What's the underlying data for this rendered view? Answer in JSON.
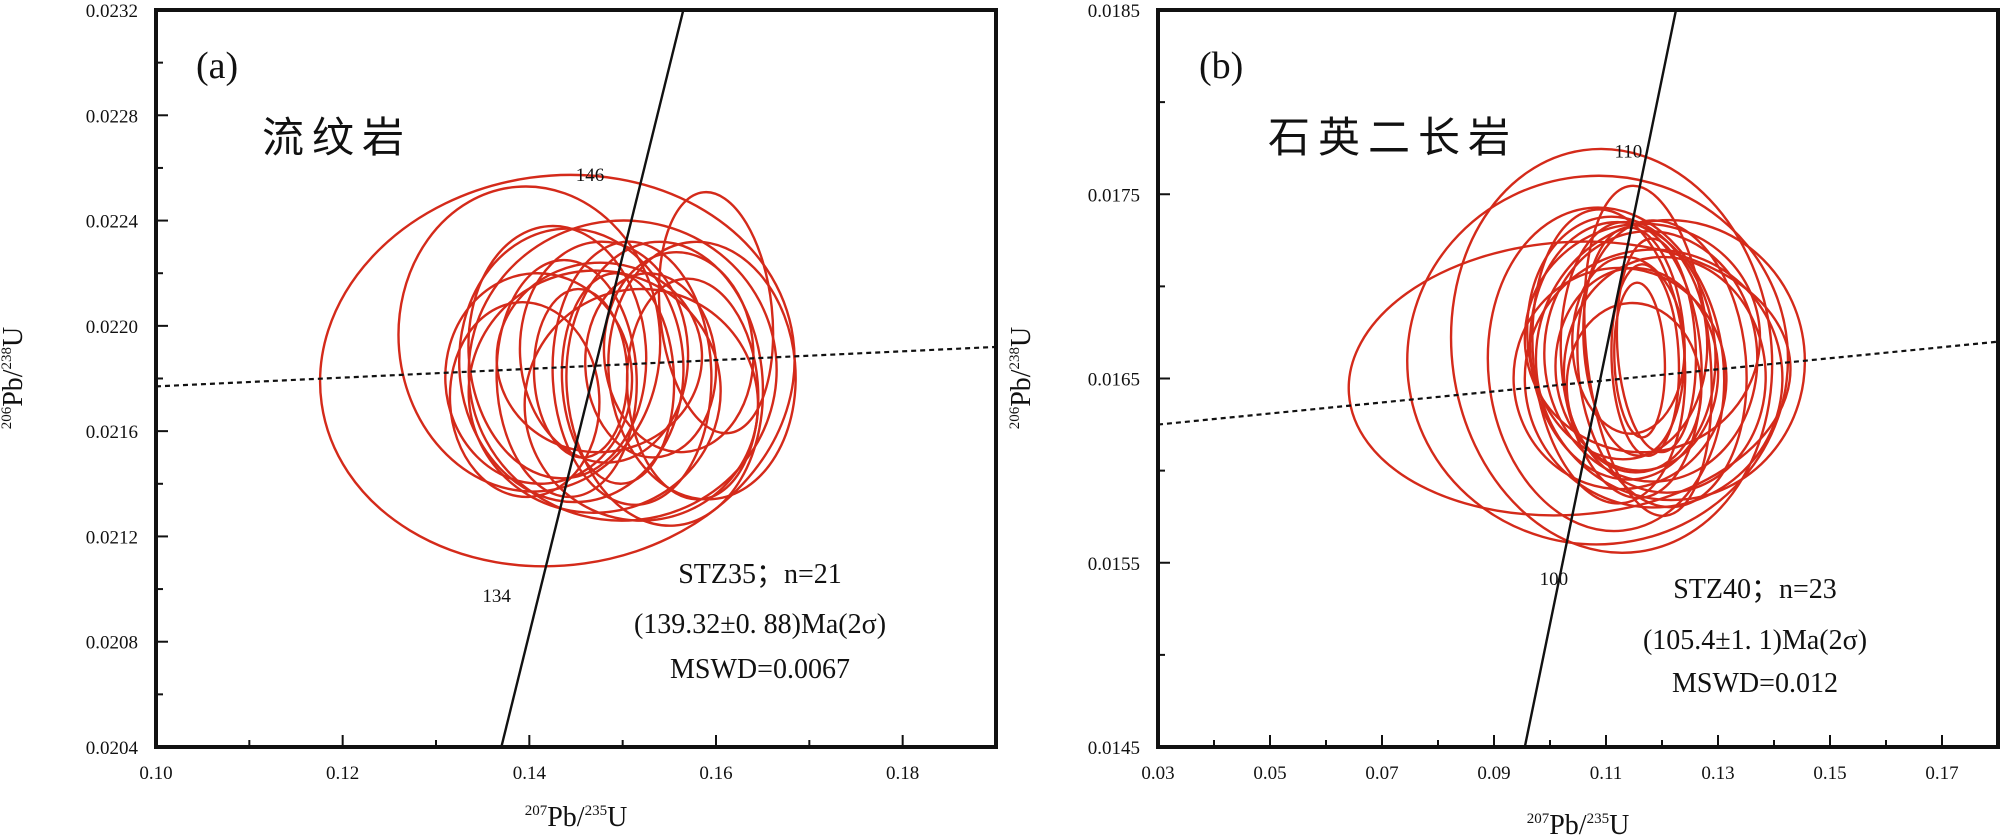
{
  "chart_data": [
    {
      "type": "scatter",
      "subtype": "concordia-diagram",
      "panel_label": "(a)",
      "rock_type": "流纹岩",
      "sample_line": "STZ35；n=21",
      "age_line": "(139.32±0. 88)Ma(2σ)",
      "mswd_line": "MSWD=0.0067",
      "xlabel": "207Pb/235U",
      "ylabel": "206Pb/238U",
      "xlabel_parts": {
        "sup1": "207",
        "b1": "Pb/",
        "sup2": "235",
        "b2": "U"
      },
      "ylabel_parts": {
        "sup1": "206",
        "b1": "Pb/",
        "sup2": "238",
        "b2": "U"
      },
      "xlim": [
        0.1,
        0.19
      ],
      "ylim": [
        0.0204,
        0.0232
      ],
      "x_ticks": [
        0.1,
        0.12,
        0.14,
        0.16,
        0.18
      ],
      "x_tick_labels": [
        "0.10",
        "0.12",
        "0.14",
        "0.16",
        "0.18"
      ],
      "y_ticks": [
        0.0204,
        0.0208,
        0.0212,
        0.0216,
        0.022,
        0.0224,
        0.0228,
        0.0232
      ],
      "y_tick_labels": [
        "0.0204",
        "0.0208",
        "0.0212",
        "0.0216",
        "0.0220",
        "0.0224",
        "0.0228",
        "0.0232"
      ],
      "concordia": {
        "x0": 0.137,
        "y0": 0.0204,
        "x1": 0.1565,
        "y1": 0.0232
      },
      "concordia_age_labels": [
        {
          "text": "146",
          "x": 0.1465,
          "y": 0.02255
        },
        {
          "text": "134",
          "x": 0.1365,
          "y": 0.02095
        }
      ],
      "discordia": {
        "x0": 0.1,
        "y0": 0.02177,
        "x1": 0.19,
        "y1": 0.02192
      },
      "error_ellipse_color": "#d42a1a",
      "error_ellipses": [
        {
          "cx": 0.143,
          "cy": 0.02183,
          "rx": 0.0255,
          "ry": 0.00074,
          "tilt_deg": 8
        },
        {
          "cx": 0.14,
          "cy": 0.02195,
          "rx": 0.014,
          "ry": 0.00058,
          "tilt_deg": 5
        },
        {
          "cx": 0.141,
          "cy": 0.0218,
          "rx": 0.01,
          "ry": 0.0004,
          "tilt_deg": 3
        },
        {
          "cx": 0.1445,
          "cy": 0.02185,
          "rx": 0.012,
          "ry": 0.00052,
          "tilt_deg": 4
        },
        {
          "cx": 0.144,
          "cy": 0.0218,
          "rx": 0.0075,
          "ry": 0.00045,
          "tilt_deg": 2
        },
        {
          "cx": 0.15,
          "cy": 0.02183,
          "rx": 0.0165,
          "ry": 0.00057,
          "tilt_deg": 6
        },
        {
          "cx": 0.148,
          "cy": 0.0219,
          "rx": 0.009,
          "ry": 0.00042,
          "tilt_deg": 3
        },
        {
          "cx": 0.151,
          "cy": 0.02182,
          "rx": 0.0085,
          "ry": 0.0005,
          "tilt_deg": 2
        },
        {
          "cx": 0.1545,
          "cy": 0.02178,
          "rx": 0.0105,
          "ry": 0.00054,
          "tilt_deg": 4
        },
        {
          "cx": 0.156,
          "cy": 0.0219,
          "rx": 0.008,
          "ry": 0.00038,
          "tilt_deg": 3
        },
        {
          "cx": 0.1585,
          "cy": 0.02183,
          "rx": 0.01,
          "ry": 0.00049,
          "tilt_deg": 5
        },
        {
          "cx": 0.16,
          "cy": 0.02205,
          "rx": 0.006,
          "ry": 0.00046,
          "tilt_deg": 6
        },
        {
          "cx": 0.147,
          "cy": 0.02175,
          "rx": 0.0135,
          "ry": 0.00046,
          "tilt_deg": 4
        },
        {
          "cx": 0.1495,
          "cy": 0.0218,
          "rx": 0.006,
          "ry": 0.0004,
          "tilt_deg": 2
        },
        {
          "cx": 0.153,
          "cy": 0.02185,
          "rx": 0.007,
          "ry": 0.00035,
          "tilt_deg": 3
        },
        {
          "cx": 0.1455,
          "cy": 0.02182,
          "rx": 0.005,
          "ry": 0.00032,
          "tilt_deg": 2
        },
        {
          "cx": 0.152,
          "cy": 0.0217,
          "rx": 0.0125,
          "ry": 0.00044,
          "tilt_deg": 5
        },
        {
          "cx": 0.143,
          "cy": 0.0219,
          "rx": 0.0095,
          "ry": 0.00048,
          "tilt_deg": 4
        },
        {
          "cx": 0.1475,
          "cy": 0.02188,
          "rx": 0.011,
          "ry": 0.00036,
          "tilt_deg": 3
        },
        {
          "cx": 0.1575,
          "cy": 0.02176,
          "rx": 0.007,
          "ry": 0.00042,
          "tilt_deg": 4
        },
        {
          "cx": 0.1395,
          "cy": 0.02172,
          "rx": 0.008,
          "ry": 0.00037,
          "tilt_deg": 3
        }
      ]
    },
    {
      "type": "scatter",
      "subtype": "concordia-diagram",
      "panel_label": "(b)",
      "rock_type": "石英二长岩",
      "sample_line": "STZ40；n=23",
      "age_line": "(105.4±1. 1)Ma(2σ)",
      "mswd_line": "MSWD=0.012",
      "xlabel": "207Pb/235U",
      "ylabel": "206Pb/238U",
      "xlabel_parts": {
        "sup1": "207",
        "b1": "Pb/",
        "sup2": "235",
        "b2": "U"
      },
      "ylabel_parts": {
        "sup1": "206",
        "b1": "Pb/",
        "sup2": "238",
        "b2": "U"
      },
      "xlim": [
        0.03,
        0.18
      ],
      "ylim": [
        0.0145,
        0.0185
      ],
      "x_ticks": [
        0.03,
        0.05,
        0.07,
        0.09,
        0.11,
        0.13,
        0.15,
        0.17
      ],
      "x_tick_labels": [
        "0.03",
        "0.05",
        "0.07",
        "0.09",
        "0.11",
        "0.13",
        "0.15",
        "0.17"
      ],
      "y_ticks": [
        0.0145,
        0.0155,
        0.0165,
        0.0175,
        0.0185
      ],
      "y_tick_labels": [
        "0.0145",
        "0.0155",
        "0.0165",
        "0.0175",
        "0.0185"
      ],
      "concordia": {
        "x0": 0.0955,
        "y0": 0.0145,
        "x1": 0.1225,
        "y1": 0.0185
      },
      "concordia_age_labels": [
        {
          "text": "110",
          "x": 0.114,
          "y": 0.0177
        },
        {
          "text": "100",
          "x": 0.1007,
          "y": 0.01538
        }
      ],
      "discordia": {
        "x0": 0.03,
        "y0": 0.01625,
        "x1": 0.18,
        "y1": 0.0167
      },
      "error_ellipse_color": "#d42a1a",
      "error_ellipses": [
        {
          "cx": 0.1035,
          "cy": 0.0165,
          "rx": 0.0395,
          "ry": 0.00074,
          "tilt_deg": 4
        },
        {
          "cx": 0.1085,
          "cy": 0.0166,
          "rx": 0.034,
          "ry": 0.001,
          "tilt_deg": 5
        },
        {
          "cx": 0.111,
          "cy": 0.01665,
          "rx": 0.0285,
          "ry": 0.0011,
          "tilt_deg": 8
        },
        {
          "cx": 0.11,
          "cy": 0.01655,
          "rx": 0.021,
          "ry": 0.00088,
          "tilt_deg": 6
        },
        {
          "cx": 0.113,
          "cy": 0.01665,
          "rx": 0.0165,
          "ry": 0.0007,
          "tilt_deg": 5
        },
        {
          "cx": 0.1145,
          "cy": 0.0166,
          "rx": 0.0125,
          "ry": 0.00075,
          "tilt_deg": 4
        },
        {
          "cx": 0.115,
          "cy": 0.0167,
          "rx": 0.009,
          "ry": 0.00062,
          "tilt_deg": 3
        },
        {
          "cx": 0.116,
          "cy": 0.0166,
          "rx": 0.0045,
          "ry": 0.00042,
          "tilt_deg": 2
        },
        {
          "cx": 0.118,
          "cy": 0.01662,
          "rx": 0.019,
          "ry": 0.00068,
          "tilt_deg": 4
        },
        {
          "cx": 0.12,
          "cy": 0.01658,
          "rx": 0.015,
          "ry": 0.00078,
          "tilt_deg": 5
        },
        {
          "cx": 0.1175,
          "cy": 0.01665,
          "rx": 0.011,
          "ry": 0.0009,
          "tilt_deg": 6
        },
        {
          "cx": 0.1215,
          "cy": 0.0166,
          "rx": 0.024,
          "ry": 0.00076,
          "tilt_deg": 6
        },
        {
          "cx": 0.1125,
          "cy": 0.0165,
          "rx": 0.019,
          "ry": 0.0006,
          "tilt_deg": 3
        },
        {
          "cx": 0.119,
          "cy": 0.01668,
          "rx": 0.007,
          "ry": 0.00058,
          "tilt_deg": 3
        },
        {
          "cx": 0.1155,
          "cy": 0.01655,
          "rx": 0.0145,
          "ry": 0.00055,
          "tilt_deg": 4
        },
        {
          "cx": 0.1165,
          "cy": 0.01672,
          "rx": 0.021,
          "ry": 0.00062,
          "tilt_deg": 5
        },
        {
          "cx": 0.1105,
          "cy": 0.01662,
          "rx": 0.0135,
          "ry": 0.0008,
          "tilt_deg": 5
        },
        {
          "cx": 0.1205,
          "cy": 0.01652,
          "rx": 0.018,
          "ry": 0.00064,
          "tilt_deg": 4
        },
        {
          "cx": 0.114,
          "cy": 0.01668,
          "rx": 0.01,
          "ry": 0.00048,
          "tilt_deg": 3
        },
        {
          "cx": 0.1185,
          "cy": 0.0165,
          "rx": 0.023,
          "ry": 0.0007,
          "tilt_deg": 5
        },
        {
          "cx": 0.112,
          "cy": 0.01672,
          "rx": 0.016,
          "ry": 0.00066,
          "tilt_deg": 6
        },
        {
          "cx": 0.117,
          "cy": 0.0166,
          "rx": 0.006,
          "ry": 0.00052,
          "tilt_deg": 2
        },
        {
          "cx": 0.115,
          "cy": 0.01645,
          "rx": 0.012,
          "ry": 0.00046,
          "tilt_deg": 3
        }
      ]
    }
  ]
}
